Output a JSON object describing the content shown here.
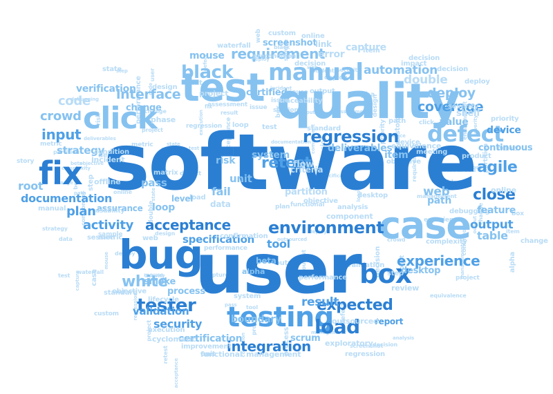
{
  "colors": {
    "dark": "#2b7fd3",
    "mid": "#4fa0e6",
    "light": "#86c2f0",
    "pale": "#b9dcf6",
    "background": "#ffffff"
  },
  "words": [
    "software",
    "user",
    "quality",
    "test",
    "case",
    "bug",
    "testing",
    "click",
    "fix",
    "box",
    "manual",
    "defect",
    "regression",
    "environment",
    "tester",
    "white",
    "load",
    "expected",
    "black",
    "requirement",
    "agile",
    "close",
    "experience",
    "acceptance",
    "interface",
    "integration",
    "security",
    "retest",
    "coverage",
    "deploy",
    "input",
    "crowd",
    "code",
    "plan",
    "activity",
    "documentation",
    "root",
    "story",
    "validation",
    "strategy",
    "double",
    "automation",
    "deliverables",
    "process",
    "result",
    "unit",
    "specification",
    "certification",
    "scrum",
    "cyclomatic",
    "exploratory",
    "report",
    "outsourced",
    "debugging",
    "output",
    "table",
    "feature",
    "online",
    "device",
    "continuous",
    "matrix",
    "path",
    "value",
    "web",
    "tool",
    "certified",
    "system",
    "flow",
    "level",
    "state",
    "change",
    "verification",
    "incident",
    "offline",
    "assurance",
    "smoke",
    "loop",
    "pass",
    "fail",
    "risk",
    "data",
    "beta",
    "alpha",
    "condition",
    "criteria",
    "mouse",
    "error",
    "capture",
    "screenshot",
    "custom",
    "waterfall",
    "decision",
    "item",
    "partition",
    "shelf",
    "boundary",
    "functional",
    "management",
    "metric",
    "session",
    "phase",
    "design",
    "priority",
    "severity",
    "lifecycle",
    "standard",
    "review",
    "complexity",
    "impact",
    "equivalence",
    "confirmation",
    "traceability",
    "component",
    "performance",
    "improvement",
    "execution",
    "desktop",
    "objective",
    "meeting",
    "product",
    "project",
    "precondition",
    "analysis",
    "deploy",
    "sample",
    "usability",
    "step",
    "assessment",
    "issue",
    "link"
  ]
}
